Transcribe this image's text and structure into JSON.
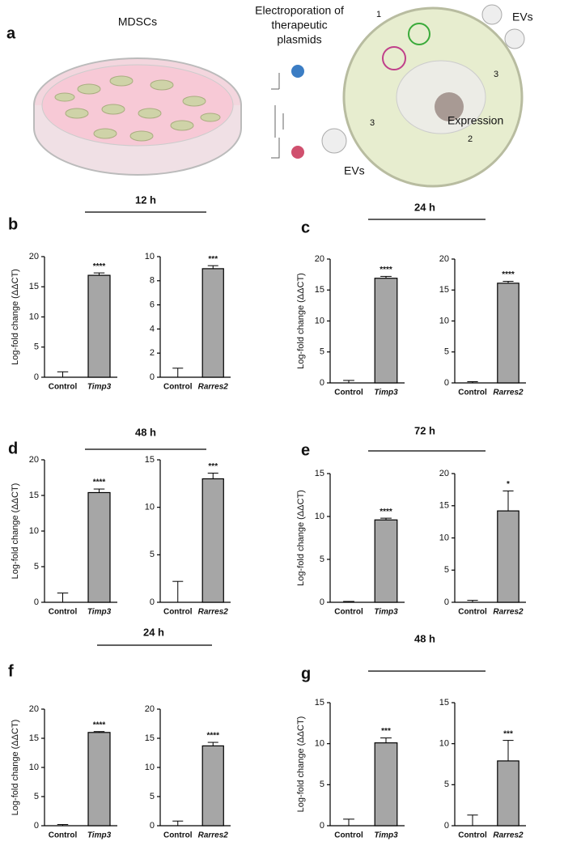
{
  "panel_a": {
    "letter": "a",
    "dish_label": "MDSCs",
    "electroporation_label": [
      "Electroporation of",
      "therapeutic",
      "plasmids"
    ],
    "ev_labels": [
      "EVs",
      "EVs"
    ],
    "expression_label": "Expression",
    "step_labels": [
      "1",
      "2",
      "3",
      "3"
    ]
  },
  "panels": [
    {
      "letter": "b",
      "title": "12 h"
    },
    {
      "letter": "c",
      "title": "24 h"
    },
    {
      "letter": "d",
      "title": "48 h"
    },
    {
      "letter": "e",
      "title": "72 h"
    },
    {
      "letter": "f",
      "title": "24 h"
    },
    {
      "letter": "g",
      "title": "48 h"
    }
  ],
  "chart_data": [
    {
      "type": "bar",
      "ylabel": "Log-fold change (ΔΔCT)",
      "categories": [
        "Control",
        "Timp3"
      ],
      "values": [
        0,
        16.9
      ],
      "errors": [
        0.9,
        0.4
      ],
      "annotation": "****",
      "color": "#a6a6a6",
      "ylim": [
        0,
        20
      ],
      "yticks": [
        0,
        5,
        10,
        15,
        20
      ]
    },
    {
      "type": "bar",
      "categories": [
        "Control",
        "Rarres2"
      ],
      "values": [
        0,
        9.0
      ],
      "errors": [
        0.75,
        0.25
      ],
      "annotation": "***",
      "color": "#a6a6a6",
      "ylim": [
        0,
        10
      ],
      "yticks": [
        0,
        2,
        4,
        6,
        8,
        10
      ]
    },
    {
      "type": "bar",
      "ylabel": "Log-fold change (ΔΔCT)",
      "categories": [
        "Control",
        "Timp3"
      ],
      "values": [
        0,
        16.9
      ],
      "errors": [
        0.4,
        0.3
      ],
      "annotation": "****",
      "color": "#a6a6a6",
      "ylim": [
        0,
        20
      ],
      "yticks": [
        0,
        5,
        10,
        15,
        20
      ]
    },
    {
      "type": "bar",
      "categories": [
        "Control",
        "Rarres2"
      ],
      "values": [
        0,
        16.1
      ],
      "errors": [
        0.2,
        0.3
      ],
      "annotation": "****",
      "color": "#a6a6a6",
      "ylim": [
        0,
        20
      ],
      "yticks": [
        0,
        5,
        10,
        15,
        20
      ]
    },
    {
      "type": "bar",
      "ylabel": "Log-fold change (ΔΔCT)",
      "categories": [
        "Control",
        "Timp3"
      ],
      "values": [
        0,
        15.4
      ],
      "errors": [
        1.3,
        0.5
      ],
      "annotation": "****",
      "color": "#a6a6a6",
      "ylim": [
        0,
        20
      ],
      "yticks": [
        0,
        5,
        10,
        15,
        20
      ]
    },
    {
      "type": "bar",
      "categories": [
        "Control",
        "Rarres2"
      ],
      "values": [
        0,
        13.0
      ],
      "errors": [
        2.2,
        0.6
      ],
      "annotation": "***",
      "color": "#a6a6a6",
      "ylim": [
        0,
        15
      ],
      "yticks": [
        0,
        5,
        10,
        15
      ]
    },
    {
      "type": "bar",
      "ylabel": "Log-fold change (ΔΔCT)",
      "categories": [
        "Control",
        "Timp3"
      ],
      "values": [
        0,
        9.6
      ],
      "errors": [
        0.1,
        0.2
      ],
      "annotation": "****",
      "color": "#a6a6a6",
      "ylim": [
        0,
        15
      ],
      "yticks": [
        0,
        5,
        10,
        15
      ]
    },
    {
      "type": "bar",
      "categories": [
        "Control",
        "Rarres2"
      ],
      "values": [
        0,
        14.2
      ],
      "errors": [
        0.3,
        3.1
      ],
      "annotation": "*",
      "color": "#a6a6a6",
      "ylim": [
        0,
        20
      ],
      "yticks": [
        0,
        5,
        10,
        15,
        20
      ]
    },
    {
      "type": "bar",
      "ylabel": "Log-fold change (ΔΔCT)",
      "categories": [
        "Control",
        "Timp3"
      ],
      "values": [
        0,
        16.0
      ],
      "errors": [
        0.2,
        0.15
      ],
      "annotation": "****",
      "color": "#a6a6a6",
      "ylim": [
        0,
        20
      ],
      "yticks": [
        0,
        5,
        10,
        15,
        20
      ]
    },
    {
      "type": "bar",
      "categories": [
        "Control",
        "Rarres2"
      ],
      "values": [
        0,
        13.7
      ],
      "errors": [
        0.8,
        0.6
      ],
      "annotation": "****",
      "color": "#a6a6a6",
      "ylim": [
        0,
        20
      ],
      "yticks": [
        0,
        5,
        10,
        15,
        20
      ]
    },
    {
      "type": "bar",
      "ylabel": "Log-fold change (ΔΔCT)",
      "categories": [
        "Control",
        "Timp3"
      ],
      "values": [
        0,
        10.1
      ],
      "errors": [
        0.8,
        0.6
      ],
      "annotation": "***",
      "color": "#a6a6a6",
      "ylim": [
        0,
        15
      ],
      "yticks": [
        0,
        5,
        10,
        15
      ]
    },
    {
      "type": "bar",
      "categories": [
        "Control",
        "Rarres2"
      ],
      "values": [
        0,
        7.9
      ],
      "errors": [
        1.3,
        2.5
      ],
      "annotation": "***",
      "color": "#a6a6a6",
      "ylim": [
        0,
        15
      ],
      "yticks": [
        0,
        5,
        10,
        15
      ]
    }
  ]
}
